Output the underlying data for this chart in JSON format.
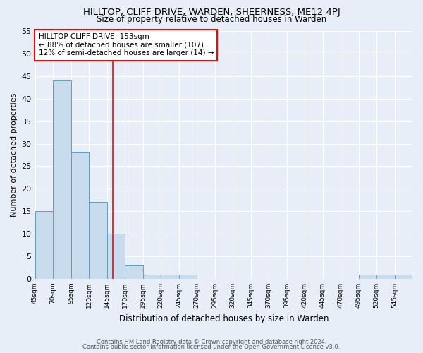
{
  "title1": "HILLTOP, CLIFF DRIVE, WARDEN, SHEERNESS, ME12 4PJ",
  "title2": "Size of property relative to detached houses in Warden",
  "xlabel": "Distribution of detached houses by size in Warden",
  "ylabel": "Number of detached properties",
  "bin_edges": [
    45,
    70,
    95,
    120,
    145,
    170,
    195,
    220,
    245,
    270,
    295,
    320,
    345,
    370,
    395,
    420,
    445,
    470,
    495,
    520,
    545,
    570
  ],
  "bar_heights": [
    15,
    44,
    28,
    17,
    10,
    3,
    1,
    1,
    1,
    0,
    0,
    0,
    0,
    0,
    0,
    0,
    0,
    0,
    1,
    1,
    1
  ],
  "bar_color": "#c9dced",
  "bar_edgecolor": "#6699bb",
  "red_line_x": 153,
  "annotation_lines": [
    "HILLTOP CLIFF DRIVE: 153sqm",
    "← 88% of detached houses are smaller (107)",
    "12% of semi-detached houses are larger (14) →"
  ],
  "annotation_box_color": "white",
  "annotation_box_edgecolor": "red",
  "ylim": [
    0,
    55
  ],
  "yticks": [
    0,
    5,
    10,
    15,
    20,
    25,
    30,
    35,
    40,
    45,
    50,
    55
  ],
  "xlim_left": 45,
  "xlim_right": 570,
  "bg_color": "#e8eef8",
  "grid_color": "white",
  "footnote1": "Contains HM Land Registry data © Crown copyright and database right 2024.",
  "footnote2": "Contains public sector information licensed under the Open Government Licence v3.0."
}
